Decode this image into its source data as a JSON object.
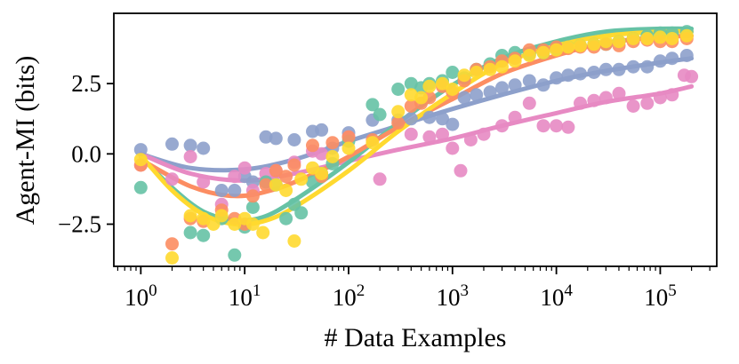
{
  "chart_data": {
    "type": "scatter",
    "title": "",
    "xlabel": "# Data Examples",
    "ylabel": "Agent-MI (bits)",
    "xscale": "log",
    "xlim": [
      0.55,
      350000
    ],
    "ylim": [
      -4.0,
      5.0
    ],
    "x_ticks": [
      {
        "value": 1,
        "base": "10",
        "exp": "0"
      },
      {
        "value": 10,
        "base": "10",
        "exp": "1"
      },
      {
        "value": 100,
        "base": "10",
        "exp": "2"
      },
      {
        "value": 1000,
        "base": "10",
        "exp": "3"
      },
      {
        "value": 10000,
        "base": "10",
        "exp": "4"
      },
      {
        "value": 100000,
        "base": "10",
        "exp": "5"
      }
    ],
    "y_ticks": [
      {
        "value": -2.5,
        "label": "−2.5"
      },
      {
        "value": 0,
        "label": "0.0"
      },
      {
        "value": 2.5,
        "label": "2.5"
      }
    ],
    "legend": "none",
    "grid": false,
    "series": [
      {
        "name": "purple",
        "color": "#8da0cb",
        "points": [
          [
            1,
            0.15
          ],
          [
            2,
            0.35
          ],
          [
            3,
            0.3
          ],
          [
            4,
            0.2
          ],
          [
            6,
            -1.3
          ],
          [
            8,
            -1.3
          ],
          [
            10,
            -0.8
          ],
          [
            12,
            -1.0
          ],
          [
            16,
            0.6
          ],
          [
            20,
            0.55
          ],
          [
            30,
            0.5
          ],
          [
            45,
            0.8
          ],
          [
            55,
            0.85
          ],
          [
            70,
            0.2
          ],
          [
            100,
            0.75
          ],
          [
            170,
            1.2
          ],
          [
            300,
            1.2
          ],
          [
            400,
            1.25
          ],
          [
            600,
            1.3
          ],
          [
            800,
            1.25
          ],
          [
            1000,
            1.05
          ],
          [
            1300,
            2.0
          ],
          [
            1700,
            2.1
          ],
          [
            2300,
            2.2
          ],
          [
            3000,
            2.35
          ],
          [
            4000,
            2.45
          ],
          [
            5500,
            2.6
          ],
          [
            7500,
            2.45
          ],
          [
            10000,
            2.7
          ],
          [
            13000,
            2.8
          ],
          [
            17000,
            2.85
          ],
          [
            23000,
            2.9
          ],
          [
            30000,
            3.0
          ],
          [
            40000,
            3.0
          ],
          [
            55000,
            3.1
          ],
          [
            75000,
            3.1
          ],
          [
            100000,
            3.3
          ],
          [
            130000,
            3.4
          ],
          [
            180000,
            3.5
          ]
        ],
        "fit": [
          [
            1,
            0.0
          ],
          [
            3,
            -0.5
          ],
          [
            10,
            -0.55
          ],
          [
            30,
            -0.2
          ],
          [
            100,
            0.45
          ],
          [
            300,
            1.0
          ],
          [
            1000,
            1.6
          ],
          [
            3000,
            2.1
          ],
          [
            10000,
            2.6
          ],
          [
            30000,
            2.95
          ],
          [
            100000,
            3.25
          ],
          [
            200000,
            3.4
          ]
        ]
      },
      {
        "name": "pink",
        "color": "#e78ac3",
        "points": [
          [
            1,
            -0.4
          ],
          [
            2,
            -0.9
          ],
          [
            3,
            -0.1
          ],
          [
            4,
            -1.0
          ],
          [
            6,
            -1.8
          ],
          [
            8,
            -0.8
          ],
          [
            10,
            -0.5
          ],
          [
            12,
            -1.3
          ],
          [
            16,
            -0.7
          ],
          [
            20,
            -0.6
          ],
          [
            30,
            -0.3
          ],
          [
            45,
            0.1
          ],
          [
            55,
            0.0
          ],
          [
            100,
            0.6
          ],
          [
            200,
            -0.9
          ],
          [
            400,
            0.7
          ],
          [
            600,
            0.6
          ],
          [
            800,
            0.7
          ],
          [
            1000,
            0.2
          ],
          [
            1200,
            -0.6
          ],
          [
            1500,
            0.5
          ],
          [
            2000,
            0.7
          ],
          [
            3000,
            1.0
          ],
          [
            4000,
            1.3
          ],
          [
            5500,
            1.8
          ],
          [
            7500,
            1.0
          ],
          [
            10000,
            1.0
          ],
          [
            13000,
            0.95
          ],
          [
            17000,
            1.8
          ],
          [
            23000,
            1.9
          ],
          [
            30000,
            2.0
          ],
          [
            40000,
            2.15
          ],
          [
            55000,
            1.7
          ],
          [
            75000,
            1.8
          ],
          [
            100000,
            2.0
          ],
          [
            130000,
            2.1
          ],
          [
            170000,
            2.8
          ],
          [
            200000,
            2.75
          ]
        ],
        "fit": [
          [
            1,
            0.0
          ],
          [
            3,
            -0.7
          ],
          [
            10,
            -0.95
          ],
          [
            30,
            -0.7
          ],
          [
            100,
            -0.25
          ],
          [
            300,
            0.15
          ],
          [
            1000,
            0.55
          ],
          [
            3000,
            1.0
          ],
          [
            10000,
            1.45
          ],
          [
            30000,
            1.85
          ],
          [
            100000,
            2.15
          ],
          [
            200000,
            2.4
          ]
        ]
      },
      {
        "name": "green",
        "color": "#66c2a5",
        "points": [
          [
            1,
            -1.2
          ],
          [
            3,
            -2.8
          ],
          [
            4,
            -2.9
          ],
          [
            6,
            -2.3
          ],
          [
            8,
            -3.6
          ],
          [
            10,
            -2.6
          ],
          [
            12,
            -1.9
          ],
          [
            16,
            -1.0
          ],
          [
            20,
            -1.1
          ],
          [
            25,
            -2.3
          ],
          [
            30,
            -1.8
          ],
          [
            35,
            -2.1
          ],
          [
            45,
            -1.0
          ],
          [
            55,
            -0.7
          ],
          [
            70,
            -0.35
          ],
          [
            100,
            0.45
          ],
          [
            170,
            1.75
          ],
          [
            200,
            1.4
          ],
          [
            300,
            2.3
          ],
          [
            400,
            2.5
          ],
          [
            500,
            2.35
          ],
          [
            600,
            2.5
          ],
          [
            800,
            2.6
          ],
          [
            1000,
            2.9
          ],
          [
            1300,
            2.7
          ],
          [
            1700,
            3.0
          ],
          [
            2300,
            3.2
          ],
          [
            3000,
            3.5
          ],
          [
            4000,
            3.6
          ],
          [
            5500,
            3.55
          ],
          [
            7500,
            3.6
          ],
          [
            10000,
            3.75
          ],
          [
            13000,
            3.8
          ],
          [
            17000,
            3.85
          ],
          [
            23000,
            3.9
          ],
          [
            30000,
            3.9
          ],
          [
            40000,
            4.0
          ],
          [
            55000,
            4.1
          ],
          [
            75000,
            4.2
          ],
          [
            100000,
            4.3
          ],
          [
            130000,
            4.3
          ],
          [
            180000,
            4.35
          ]
        ],
        "fit": [
          [
            1,
            -0.1
          ],
          [
            2,
            -1.2
          ],
          [
            4,
            -2.05
          ],
          [
            8,
            -2.35
          ],
          [
            15,
            -2.25
          ],
          [
            30,
            -1.65
          ],
          [
            100,
            -0.3
          ],
          [
            300,
            1.1
          ],
          [
            1000,
            2.45
          ],
          [
            3000,
            3.4
          ],
          [
            10000,
            4.0
          ],
          [
            30000,
            4.35
          ],
          [
            100000,
            4.45
          ],
          [
            200000,
            4.45
          ]
        ]
      },
      {
        "name": "orange",
        "color": "#fc8d62",
        "points": [
          [
            1,
            -0.4
          ],
          [
            2,
            -3.2
          ],
          [
            3,
            -2.3
          ],
          [
            4,
            -2.4
          ],
          [
            6,
            -2.0
          ],
          [
            8,
            -2.3
          ],
          [
            10,
            -2.5
          ],
          [
            12,
            -1.5
          ],
          [
            16,
            -1.1
          ],
          [
            20,
            -0.6
          ],
          [
            25,
            -0.8
          ],
          [
            30,
            -0.4
          ],
          [
            45,
            0.3
          ],
          [
            55,
            -0.8
          ],
          [
            70,
            0.4
          ],
          [
            100,
            0.6
          ],
          [
            170,
            0.5
          ],
          [
            300,
            1.1
          ],
          [
            400,
            1.7
          ],
          [
            500,
            1.8
          ],
          [
            600,
            2.0
          ],
          [
            800,
            2.4
          ],
          [
            1000,
            2.2
          ],
          [
            1300,
            2.6
          ],
          [
            1700,
            3.0
          ],
          [
            2300,
            3.1
          ],
          [
            3000,
            3.3
          ],
          [
            4000,
            3.4
          ],
          [
            5500,
            3.7
          ],
          [
            7500,
            3.7
          ],
          [
            10000,
            3.8
          ],
          [
            13000,
            3.75
          ],
          [
            17000,
            3.8
          ],
          [
            23000,
            3.8
          ],
          [
            30000,
            3.9
          ],
          [
            40000,
            3.85
          ],
          [
            55000,
            4.0
          ],
          [
            75000,
            4.05
          ],
          [
            100000,
            4.0
          ],
          [
            130000,
            4.0
          ],
          [
            180000,
            4.1
          ]
        ],
        "fit": [
          [
            1,
            -0.2
          ],
          [
            3,
            -1.15
          ],
          [
            8,
            -1.5
          ],
          [
            20,
            -1.25
          ],
          [
            50,
            -0.65
          ],
          [
            100,
            -0.1
          ],
          [
            300,
            0.95
          ],
          [
            1000,
            1.95
          ],
          [
            3000,
            2.85
          ],
          [
            10000,
            3.5
          ],
          [
            30000,
            3.95
          ],
          [
            100000,
            4.15
          ],
          [
            200000,
            4.2
          ]
        ]
      },
      {
        "name": "yellow",
        "color": "#ffd92f",
        "points": [
          [
            1,
            -0.2
          ],
          [
            2,
            -3.7
          ],
          [
            3,
            -2.2
          ],
          [
            4,
            -2.3
          ],
          [
            5,
            -2.5
          ],
          [
            6,
            -2.2
          ],
          [
            8,
            -2.5
          ],
          [
            10,
            -2.3
          ],
          [
            12,
            -2.5
          ],
          [
            15,
            -2.8
          ],
          [
            20,
            -1.1
          ],
          [
            25,
            -1.3
          ],
          [
            30,
            -3.1
          ],
          [
            35,
            -0.9
          ],
          [
            45,
            -0.5
          ],
          [
            55,
            -0.7
          ],
          [
            70,
            -0.1
          ],
          [
            100,
            0.2
          ],
          [
            170,
            0.4
          ],
          [
            300,
            1.5
          ],
          [
            400,
            2.1
          ],
          [
            500,
            2.0
          ],
          [
            600,
            2.4
          ],
          [
            800,
            2.5
          ],
          [
            1000,
            2.3
          ],
          [
            1300,
            2.8
          ],
          [
            1700,
            2.9
          ],
          [
            2300,
            3.0
          ],
          [
            3000,
            3.1
          ],
          [
            4000,
            3.3
          ],
          [
            5500,
            3.5
          ],
          [
            7500,
            3.6
          ],
          [
            10000,
            3.7
          ],
          [
            13000,
            3.8
          ],
          [
            17000,
            3.85
          ],
          [
            23000,
            3.9
          ],
          [
            30000,
            4.0
          ],
          [
            40000,
            4.0
          ],
          [
            55000,
            4.1
          ],
          [
            75000,
            4.1
          ],
          [
            100000,
            4.15
          ],
          [
            130000,
            4.1
          ],
          [
            180000,
            4.2
          ]
        ],
        "fit": [
          [
            1,
            -0.05
          ],
          [
            2,
            -1.3
          ],
          [
            4,
            -2.15
          ],
          [
            8,
            -2.5
          ],
          [
            15,
            -2.4
          ],
          [
            30,
            -1.9
          ],
          [
            100,
            -0.6
          ],
          [
            300,
            0.8
          ],
          [
            1000,
            2.15
          ],
          [
            3000,
            3.2
          ],
          [
            10000,
            3.85
          ],
          [
            30000,
            4.2
          ],
          [
            100000,
            4.35
          ],
          [
            200000,
            4.35
          ]
        ]
      }
    ]
  }
}
